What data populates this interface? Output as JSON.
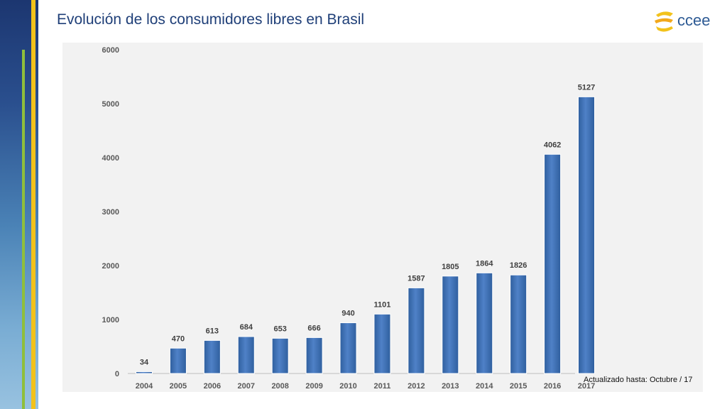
{
  "header": {
    "title": "Evolución de los consumidores libres en Brasil",
    "logo_text": "ccee"
  },
  "footer": {
    "updated": "Actualizado hasta: Octubre / 17"
  },
  "colors": {
    "bar": "#4f81c7",
    "bar_dark": "#2f5f9e",
    "title": "#1f3f78",
    "accent_yellow": "#f2c21b",
    "accent_green": "#8fbf3b"
  },
  "chart_data": {
    "type": "bar",
    "title": "",
    "xlabel": "",
    "ylabel": "",
    "ylim": [
      0,
      6000
    ],
    "yticks": [
      0,
      1000,
      2000,
      3000,
      4000,
      5000,
      6000
    ],
    "grid": false,
    "categories": [
      "2004",
      "2005",
      "2006",
      "2007",
      "2008",
      "2009",
      "2010",
      "2011",
      "2012",
      "2013",
      "2014",
      "2015",
      "2016",
      "2017"
    ],
    "values": [
      34,
      470,
      613,
      684,
      653,
      666,
      940,
      1101,
      1587,
      1805,
      1864,
      1826,
      4062,
      5127
    ]
  }
}
